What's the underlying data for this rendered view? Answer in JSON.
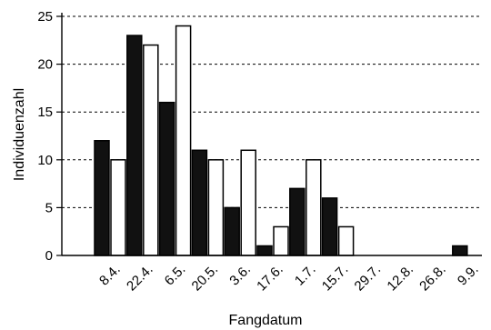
{
  "chart_data": {
    "type": "bar",
    "xlabel": "Fangdatum",
    "ylabel": "Individuenzahl",
    "ylim": [
      0,
      25
    ],
    "yticks": [
      0,
      5,
      10,
      15,
      20,
      25
    ],
    "grid": "horizontal-dashed",
    "categories": [
      "8.4.",
      "22.4.",
      "6.5.",
      "20.5.",
      "3.6.",
      "17.6.",
      "1.7.",
      "15.7.",
      "29.7.",
      "12.8.",
      "26.8.",
      "9.9."
    ],
    "series": [
      {
        "values": [
          12,
          23,
          16,
          11,
          5,
          1,
          7,
          6,
          0,
          0,
          0,
          1
        ],
        "fill": "#111111",
        "stroke": "#000000"
      },
      {
        "values": [
          10,
          22,
          24,
          10,
          11,
          3,
          10,
          3,
          0,
          0,
          0,
          0
        ],
        "fill": "#ffffff",
        "stroke": "#000000"
      }
    ]
  }
}
